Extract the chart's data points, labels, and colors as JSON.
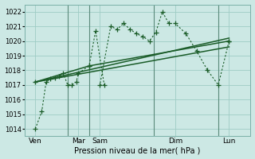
{
  "xlabel": "Pression niveau de la mer( hPa )",
  "bg_color": "#cce8e4",
  "grid_color": "#9eccc4",
  "line_color": "#1a5c28",
  "ylim": [
    1013.5,
    1022.5
  ],
  "yticks": [
    1014,
    1015,
    1016,
    1017,
    1018,
    1019,
    1020,
    1021,
    1022
  ],
  "xlim": [
    0,
    10.5
  ],
  "xtick_positions": [
    0.5,
    2.5,
    3.5,
    7.0,
    9.5
  ],
  "xtick_labels": [
    "Ven",
    "Mar",
    "Sam",
    "Dim",
    "Lun"
  ],
  "vline_positions": [
    2.0,
    3.0,
    6.0,
    9.0
  ],
  "zigzag_x": [
    0.5,
    0.8,
    1.0,
    1.2,
    1.4,
    1.6,
    1.8,
    2.0,
    2.2,
    2.4,
    2.5,
    3.0,
    3.3,
    3.7,
    3.5,
    4.0,
    4.3,
    4.6,
    4.9,
    5.2,
    5.5,
    5.8,
    6.1,
    6.4,
    6.7,
    7.0,
    7.5,
    8.0,
    8.5,
    9.0,
    9.5
  ],
  "zigzag_y": [
    1014.0,
    1015.2,
    1017.2,
    1017.4,
    1017.5,
    1017.6,
    1017.8,
    1017.0,
    1017.0,
    1017.2,
    1017.8,
    1018.3,
    1020.7,
    1017.0,
    1017.0,
    1021.0,
    1020.8,
    1021.2,
    1020.8,
    1020.5,
    1020.3,
    1020.0,
    1020.6,
    1022.0,
    1021.2,
    1021.2,
    1020.5,
    1019.3,
    1018.0,
    1017.0,
    1020.0
  ],
  "trend1_x": [
    0.5,
    9.5
  ],
  "trend1_y": [
    1017.2,
    1020.2
  ],
  "trend2_x": [
    0.5,
    9.5
  ],
  "trend2_y": [
    1017.2,
    1019.6
  ],
  "trend3_x": [
    0.5,
    3.0,
    9.5
  ],
  "trend3_y": [
    1017.2,
    1018.3,
    1020.0
  ]
}
